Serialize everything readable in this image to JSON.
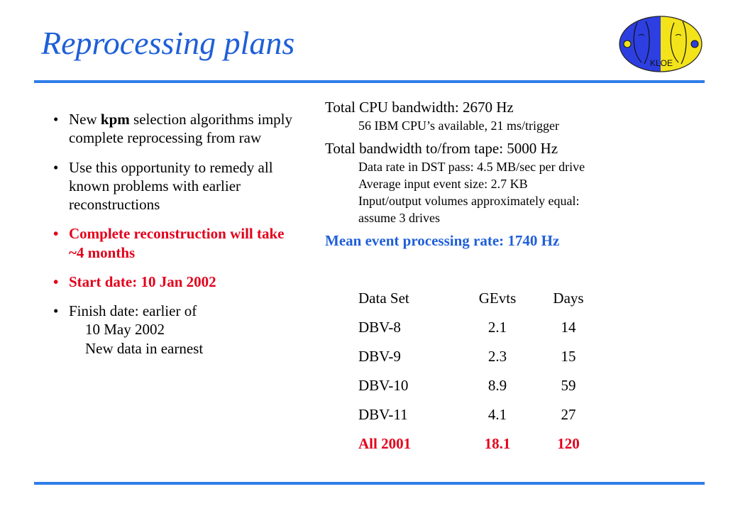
{
  "title": "Reprocessing plans",
  "logo": {
    "text": "KLOE",
    "colors": {
      "left": "#2d3fe0",
      "right": "#f3e31a"
    }
  },
  "left_bullets": {
    "b1_pre": "New ",
    "b1_bold": "kpm",
    "b1_post": " selection algorithms imply complete reprocessing from raw",
    "b2": "Use this opportunity to remedy all known problems with earlier reconstructions",
    "b3": "Complete reconstruction will take ~4 months",
    "b4": "Start date: 10 Jan 2002",
    "b5": "Finish date: earlier of",
    "b5_sub1": "10 May 2002",
    "b5_sub2": "New data in earnest"
  },
  "right_panel": {
    "cpu_title": "Total CPU bandwidth: 2670 Hz",
    "cpu_detail": "56 IBM CPU’s available, 21 ms/trigger",
    "tape_title": "Total bandwidth to/from tape: 5000 Hz",
    "tape_details": [
      "Data rate in DST pass: 4.5 MB/sec per drive",
      "Average input event size: 2.7 KB",
      "Input/output volumes approximately equal:",
      "assume 3 drives"
    ],
    "mean_rate": "Mean event processing rate: 1740 Hz"
  },
  "table": {
    "headers": [
      "Data Set",
      "GEvts",
      "Days"
    ],
    "rows": [
      [
        "DBV-8",
        "2.1",
        "14"
      ],
      [
        "DBV-9",
        "2.3",
        "15"
      ],
      [
        "DBV-10",
        "8.9",
        "59"
      ],
      [
        "DBV-11",
        "4.1",
        "27"
      ]
    ],
    "total": [
      "All 2001",
      "18.1",
      "120"
    ]
  },
  "colors": {
    "title": "#1f5fd8",
    "rule": "#2f7de8",
    "emphasis": "#e3001b"
  }
}
